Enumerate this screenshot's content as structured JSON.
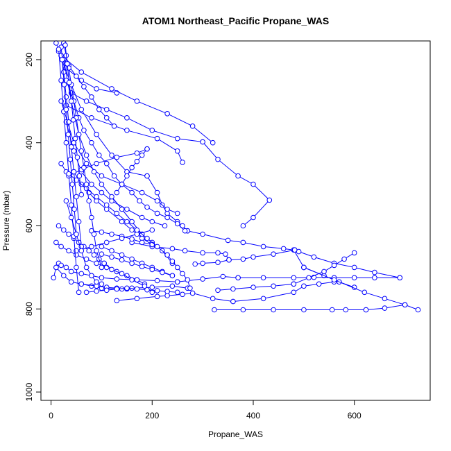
{
  "chart_data": {
    "type": "line",
    "title": "ATOM1 Northeast_Pacific Propane_WAS",
    "xlabel": "Propane_WAS",
    "ylabel": "Pressure (mbar)",
    "xlim": [
      -20,
      750
    ],
    "ylim": [
      1020,
      155
    ],
    "y_reversed": true,
    "x_ticks": [
      0,
      200,
      400,
      600
    ],
    "y_ticks": [
      200,
      400,
      600,
      800,
      1000
    ],
    "grid": false,
    "legend": "none",
    "colors": {
      "series": "#0000ff",
      "axes": "#000000",
      "background": "#ffffff"
    },
    "series": [
      {
        "x": [
          10,
          30,
          60,
          90,
          130
        ],
        "y": [
          160,
          220,
          250,
          270,
          280
        ]
      },
      {
        "x": [
          40,
          70,
          110,
          150,
          200,
          250,
          300
        ],
        "y": [
          280,
          300,
          320,
          340,
          370,
          390,
          398
        ]
      },
      {
        "x": [
          300,
          330,
          370,
          400,
          432,
          400,
          380
        ],
        "y": [
          398,
          440,
          480,
          500,
          538,
          580,
          600
        ]
      },
      {
        "x": [
          20,
          60,
          120,
          170,
          230,
          280,
          320
        ],
        "y": [
          190,
          230,
          270,
          300,
          330,
          360,
          400
        ]
      },
      {
        "x": [
          30,
          80,
          150,
          210,
          250,
          260
        ],
        "y": [
          310,
          340,
          370,
          390,
          420,
          447
        ]
      },
      {
        "x": [
          15,
          40,
          60,
          90,
          120,
          150,
          190
        ],
        "y": [
          180,
          260,
          320,
          380,
          430,
          470,
          480
        ]
      },
      {
        "x": [
          190,
          210,
          220,
          230,
          250,
          260,
          270
        ],
        "y": [
          480,
          520,
          550,
          570,
          590,
          600,
          612
        ]
      },
      {
        "x": [
          270,
          300,
          350,
          380,
          420,
          460,
          480,
          500
        ],
        "y": [
          612,
          620,
          635,
          640,
          650,
          655,
          658,
          700
        ]
      },
      {
        "x": [
          500,
          540,
          570,
          600
        ],
        "y": [
          700,
          720,
          735,
          748
        ]
      },
      {
        "x": [
          20,
          45,
          70,
          100,
          140,
          180,
          210,
          230,
          250
        ],
        "y": [
          300,
          400,
          450,
          480,
          500,
          520,
          540,
          560,
          570
        ]
      },
      {
        "x": [
          30,
          45,
          60,
          80,
          100,
          120,
          150,
          180,
          200,
          225
        ],
        "y": [
          350,
          420,
          470,
          500,
          520,
          540,
          560,
          580,
          590,
          600
        ]
      },
      {
        "x": [
          25,
          40,
          55,
          70,
          85,
          100,
          120,
          140,
          160,
          180
        ],
        "y": [
          200,
          300,
          380,
          430,
          470,
          500,
          530,
          560,
          590,
          620
        ]
      },
      {
        "x": [
          180,
          200,
          220,
          240
        ],
        "y": [
          620,
          640,
          660,
          690
        ]
      },
      {
        "x": [
          10,
          20,
          35,
          50,
          70,
          90,
          110,
          130,
          150,
          170,
          185
        ],
        "y": [
          640,
          650,
          660,
          670,
          680,
          690,
          700,
          710,
          720,
          730,
          740
        ]
      },
      {
        "x": [
          60,
          80,
          100,
          130,
          160,
          200,
          240,
          270
        ],
        "y": [
          740,
          745,
          750,
          752,
          750,
          748,
          745,
          750
        ]
      },
      {
        "x": [
          5,
          10,
          15,
          20,
          30,
          40,
          60,
          80,
          100,
          130,
          170,
          210,
          250
        ],
        "y": [
          725,
          700,
          690,
          695,
          700,
          710,
          715,
          720,
          725,
          728,
          730,
          732,
          735
        ]
      },
      {
        "x": [
          250,
          300,
          340,
          370
        ],
        "y": [
          735,
          728,
          722,
          725
        ]
      },
      {
        "x": [
          370,
          420,
          480,
          520,
          560,
          600,
          640,
          690
        ],
        "y": [
          725,
          725,
          725,
          724,
          725,
          725,
          725,
          725
        ]
      },
      {
        "x": [
          690,
          640,
          600,
          560,
          520,
          490,
          482
        ],
        "y": [
          725,
          712,
          700,
          690,
          675,
          662,
          658
        ]
      },
      {
        "x": [
          482,
          440,
          400,
          380,
          352
        ],
        "y": [
          658,
          668,
          675,
          680,
          682
        ]
      },
      {
        "x": [
          352,
          330,
          300,
          285
        ],
        "y": [
          682,
          688,
          690,
          692
        ]
      },
      {
        "x": [
          160,
          200,
          240,
          265,
          300,
          330,
          345,
          352
        ],
        "y": [
          640,
          650,
          655,
          660,
          665,
          665,
          668,
          682
        ]
      },
      {
        "x": [
          10,
          25,
          40,
          60,
          90,
          110,
          130,
          140,
          150
        ],
        "y": [
          700,
          720,
          735,
          740,
          745,
          748,
          750,
          752,
          752
        ]
      },
      {
        "x": [
          130,
          170,
          210,
          230,
          260,
          280
        ],
        "y": [
          780,
          775,
          770,
          768,
          765,
          762
        ]
      },
      {
        "x": [
          280,
          320,
          360
        ],
        "y": [
          762,
          775,
          782
        ]
      },
      {
        "x": [
          360,
          420,
          480,
          500,
          530,
          560
        ],
        "y": [
          782,
          775,
          760,
          745,
          740,
          735
        ]
      },
      {
        "x": [
          323,
          380,
          440,
          500,
          556,
          583,
          623
        ],
        "y": [
          802,
          802,
          802,
          802,
          802,
          802,
          802
        ]
      },
      {
        "x": [
          623,
          660,
          700,
          726
        ],
        "y": [
          802,
          798,
          790,
          802
        ]
      },
      {
        "x": [
          500,
          560,
          620,
          660,
          700
        ],
        "y": [
          700,
          730,
          760,
          775,
          790
        ]
      },
      {
        "x": [
          600,
          580,
          560,
          540,
          510,
          480
        ],
        "y": [
          665,
          680,
          695,
          710,
          725,
          740
        ]
      },
      {
        "x": [
          480,
          440,
          400,
          360,
          330
        ],
        "y": [
          740,
          745,
          748,
          752,
          755
        ]
      },
      {
        "x": [
          45,
          60,
          75,
          90,
          110,
          140,
          160,
          180,
          200
        ],
        "y": [
          470,
          500,
          520,
          540,
          560,
          590,
          610,
          630,
          645
        ]
      },
      {
        "x": [
          200,
          180,
          160,
          140,
          120,
          100,
          80
        ],
        "y": [
          645,
          640,
          632,
          625,
          620,
          615,
          612
        ]
      },
      {
        "x": [
          30,
          45,
          55,
          65,
          80,
          95,
          110,
          125,
          140
        ],
        "y": [
          250,
          300,
          340,
          370,
          400,
          430,
          450,
          480,
          500
        ]
      },
      {
        "x": [
          140,
          160,
          175,
          190,
          210
        ],
        "y": [
          500,
          520,
          540,
          555,
          570
        ]
      },
      {
        "x": [
          210,
          230,
          250,
          265
        ],
        "y": [
          570,
          580,
          595,
          612
        ]
      },
      {
        "x": [
          35,
          60,
          90,
          130,
          170,
          190
        ],
        "y": [
          480,
          465,
          450,
          435,
          425,
          415
        ]
      },
      {
        "x": [
          190,
          180,
          170,
          160,
          150,
          140,
          130
        ],
        "y": [
          415,
          430,
          445,
          460,
          480,
          500,
          520
        ]
      },
      {
        "x": [
          50,
          80,
          110,
          140,
          170,
          200
        ],
        "y": [
          660,
          650,
          640,
          630,
          620,
          610
        ]
      },
      {
        "x": [
          20,
          30,
          50,
          70,
          90,
          110,
          130,
          150,
          170,
          190,
          210,
          230
        ],
        "y": [
          450,
          470,
          490,
          510,
          530,
          550,
          570,
          590,
          610,
          630,
          650,
          670
        ]
      },
      {
        "x": [
          230,
          240,
          250,
          260,
          270,
          275
        ],
        "y": [
          670,
          685,
          700,
          715,
          730,
          750
        ]
      },
      {
        "x": [
          15,
          25,
          35,
          45,
          55,
          65,
          75,
          85,
          95,
          105
        ],
        "y": [
          600,
          610,
          620,
          630,
          640,
          650,
          660,
          670,
          680,
          690
        ]
      },
      {
        "x": [
          105,
          120,
          140,
          160,
          185,
          200
        ],
        "y": [
          690,
          705,
          715,
          730,
          745,
          760
        ]
      },
      {
        "x": [
          20,
          35,
          50,
          65,
          80,
          95,
          110,
          125
        ],
        "y": [
          190,
          215,
          240,
          265,
          290,
          320,
          340,
          360
        ]
      },
      {
        "x": [
          25,
          30,
          35,
          40,
          45,
          50,
          55,
          60,
          65,
          70,
          75,
          80,
          85,
          90,
          100
        ],
        "y": [
          160,
          190,
          220,
          260,
          300,
          340,
          380,
          420,
          460,
          500,
          540,
          580,
          620,
          660,
          700
        ]
      },
      {
        "x": [
          20,
          25,
          30,
          35,
          40,
          45,
          50,
          55,
          60
        ],
        "y": [
          170,
          230,
          290,
          350,
          410,
          470,
          530,
          590,
          650
        ]
      },
      {
        "x": [
          15,
          20,
          25,
          30,
          35,
          40,
          45,
          50,
          55
        ],
        "y": [
          175,
          250,
          325,
          400,
          475,
          550,
          625,
          700,
          760
        ]
      },
      {
        "x": [
          28,
          32,
          36,
          40,
          44,
          48,
          52,
          56,
          60
        ],
        "y": [
          165,
          210,
          255,
          300,
          345,
          390,
          435,
          480,
          525
        ]
      },
      {
        "x": [
          22,
          26,
          30,
          34,
          38,
          42,
          46,
          50
        ],
        "y": [
          200,
          260,
          320,
          380,
          440,
          500,
          560,
          620
        ]
      },
      {
        "x": [
          30,
          40,
          50,
          60,
          70,
          80,
          90,
          100
        ],
        "y": [
          540,
          580,
          620,
          660,
          700,
          720,
          735,
          740
        ]
      },
      {
        "x": [
          70,
          90,
          110,
          130,
          150,
          170,
          190,
          210,
          230,
          250
        ],
        "y": [
          760,
          757,
          755,
          752,
          750,
          752,
          754,
          756,
          758,
          760
        ]
      },
      {
        "x": [
          100,
          120,
          140,
          160,
          180,
          200,
          220,
          240
        ],
        "y": [
          650,
          660,
          670,
          680,
          690,
          700,
          710,
          720
        ]
      },
      {
        "x": [
          240,
          220,
          200,
          180,
          160,
          140,
          120,
          100
        ],
        "y": [
          720,
          712,
          705,
          698,
          690,
          682,
          675,
          668
        ]
      }
    ]
  }
}
